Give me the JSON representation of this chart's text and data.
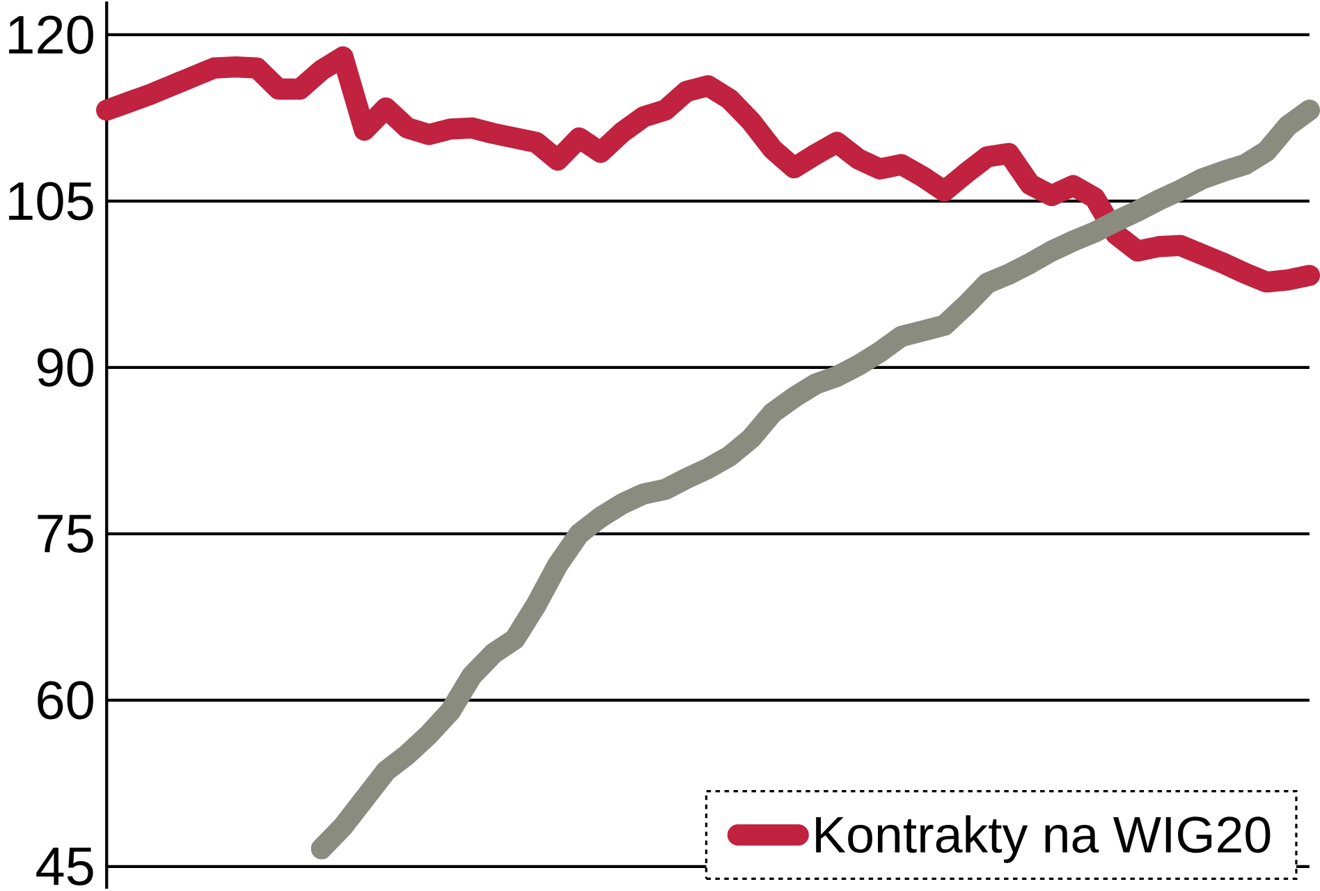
{
  "chart_data": {
    "type": "line",
    "categories": [
      null,
      null,
      null,
      null,
      null,
      null,
      null,
      null,
      null,
      null,
      null,
      null,
      null,
      null,
      null,
      null,
      null,
      null,
      null,
      null,
      null,
      null,
      null,
      null,
      null,
      null,
      null,
      null,
      null,
      null,
      null,
      null,
      null,
      null,
      null,
      null,
      null,
      null,
      null,
      null,
      null,
      null,
      null,
      null,
      null,
      null,
      null,
      null,
      null,
      null,
      null,
      null,
      null,
      null,
      null,
      null,
      null
    ],
    "series": [
      {
        "name": "Kontrakty na WIG20",
        "color": "#c0223f",
        "values": [
          113.2,
          113.9,
          114.6,
          115.4,
          116.2,
          117.0,
          117.1,
          117.0,
          115.1,
          115.1,
          116.8,
          118.0,
          111.4,
          113.4,
          111.6,
          111.0,
          111.5,
          111.6,
          111.1,
          110.7,
          110.3,
          108.7,
          110.7,
          109.4,
          111.2,
          112.6,
          113.2,
          114.9,
          115.4,
          114.2,
          112.2,
          109.7,
          108.0,
          109.2,
          110.3,
          108.8,
          107.9,
          108.3,
          107.2,
          105.9,
          107.5,
          109.0,
          109.3,
          106.5,
          105.5,
          106.4,
          105.3,
          102.0,
          100.5,
          100.9,
          101.0,
          100.2,
          99.4,
          98.5,
          97.7,
          97.9,
          98.3
        ]
      },
      {
        "color": "#8a8c80",
        "values": [
          null,
          null,
          null,
          null,
          null,
          null,
          null,
          null,
          null,
          null,
          46.6,
          48.6,
          51.1,
          53.6,
          55.1,
          56.9,
          59.0,
          62.2,
          64.2,
          65.5,
          68.6,
          72.2,
          75.0,
          76.5,
          77.7,
          78.6,
          79.0,
          80.0,
          80.9,
          82.0,
          83.6,
          85.9,
          87.3,
          88.5,
          89.2,
          90.2,
          91.4,
          92.8,
          93.3,
          93.8,
          95.6,
          97.6,
          98.4,
          99.4,
          100.5,
          101.4,
          102.2,
          103.2,
          104.1,
          105.1,
          106.0,
          107.0,
          107.7,
          108.3,
          109.5,
          111.8,
          113.2
        ]
      }
    ],
    "ylim": [
      43,
      123
    ],
    "yticks": [
      45,
      60,
      75,
      90,
      105,
      120
    ],
    "grid": "y",
    "legend": "bottom right",
    "tick_labels": "y",
    "line_style": "solid",
    "marker": "none"
  }
}
